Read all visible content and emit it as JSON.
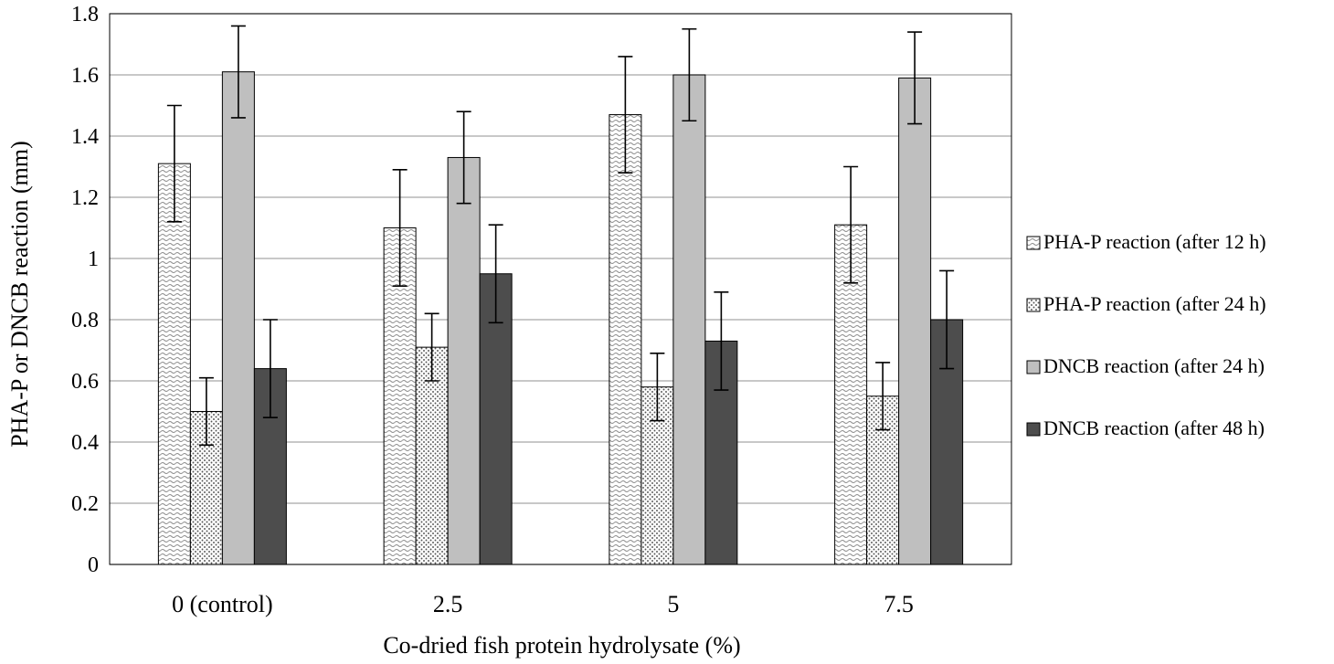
{
  "chart_data": {
    "type": "bar",
    "title": "",
    "xlabel": "Co-dried fish protein hydrolysate (%)",
    "ylabel": "PHA-P or DNCB reaction (mm)",
    "ylim": [
      0,
      1.8
    ],
    "ytick_step": 0.2,
    "yticks": [
      "0",
      "0.2",
      "0.4",
      "0.6",
      "0.8",
      "1",
      "1.2",
      "1.4",
      "1.6",
      "1.8"
    ],
    "grid": true,
    "legend_position": "right",
    "categories": [
      "0 (control)",
      "2.5",
      "5",
      "7.5"
    ],
    "series": [
      {
        "name": "PHA-P reaction (after 12 h)",
        "pattern": "wave",
        "values": [
          1.31,
          1.1,
          1.47,
          1.11
        ],
        "errors": [
          0.19,
          0.19,
          0.19,
          0.19
        ]
      },
      {
        "name": "PHA-P reaction (after 24 h)",
        "pattern": "dots",
        "values": [
          0.5,
          0.71,
          0.58,
          0.55
        ],
        "errors": [
          0.11,
          0.11,
          0.11,
          0.11
        ]
      },
      {
        "name": "DNCB reaction (after 24 h)",
        "pattern": "lightgray",
        "values": [
          1.61,
          1.33,
          1.6,
          1.59
        ],
        "errors": [
          0.15,
          0.15,
          0.15,
          0.15
        ]
      },
      {
        "name": "DNCB reaction (after 48 h)",
        "pattern": "darkgray",
        "values": [
          0.64,
          0.95,
          0.73,
          0.8
        ],
        "errors": [
          0.16,
          0.16,
          0.16,
          0.16
        ]
      }
    ],
    "colors": {
      "wave_fill": "#ffffff",
      "wave_stroke": "#8c8c8c",
      "dots_fill": "#ffffff",
      "dots_dot": "#555555",
      "lightgray": "#bfbfbf",
      "darkgray": "#4d4d4d",
      "grid": "#a6a6a6",
      "border": "#000000"
    }
  }
}
